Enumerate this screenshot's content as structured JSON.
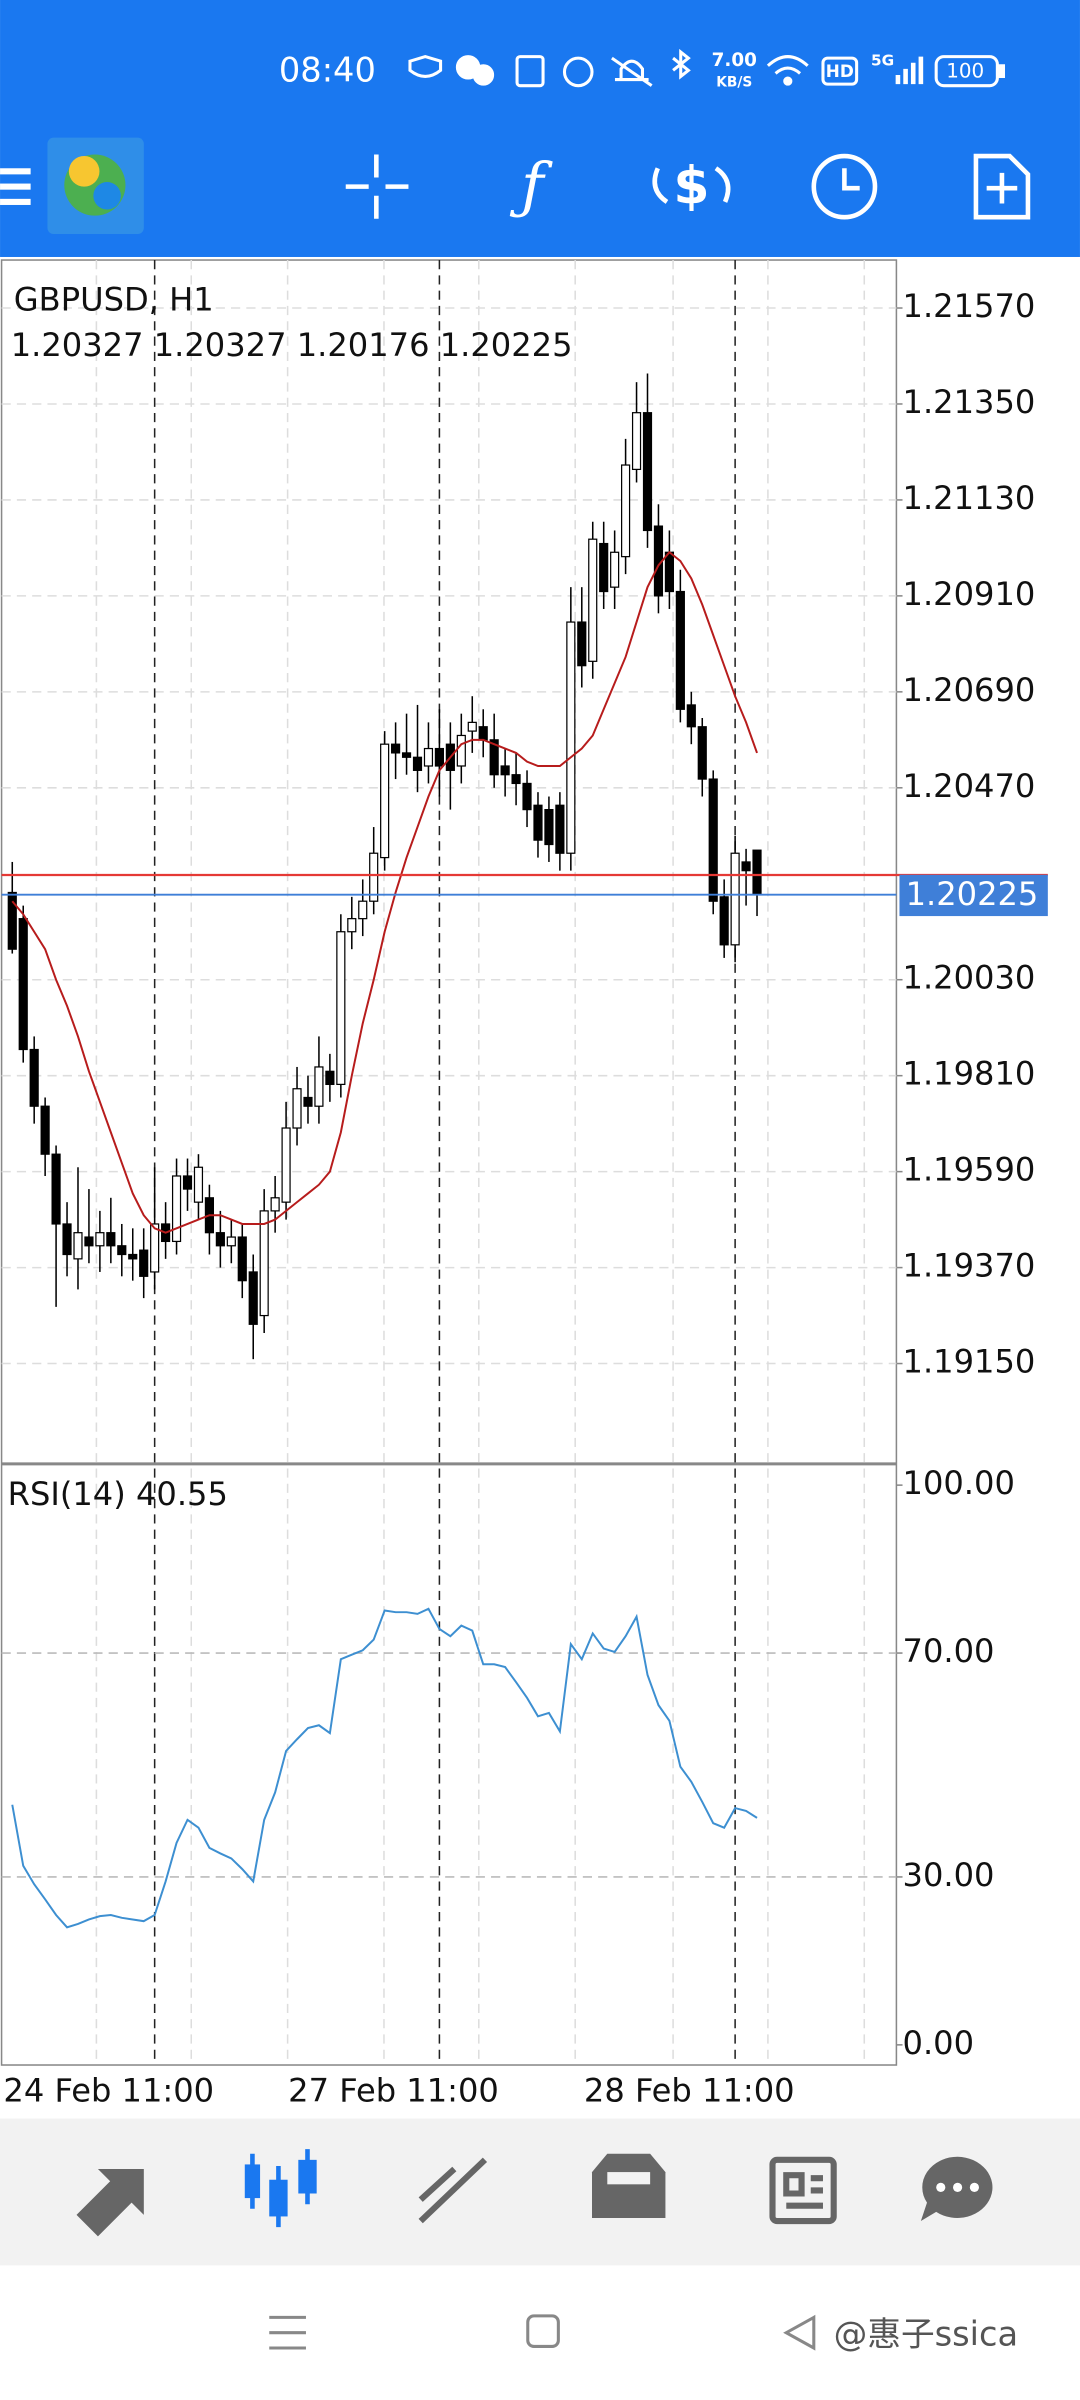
{
  "status_bar": {
    "time": "08:40",
    "net_speed": "7.00",
    "net_unit": "KB/S",
    "hd": "HD",
    "network": "5G",
    "battery": "100"
  },
  "chart_data": [
    {
      "type": "candlestick",
      "title": "GBPUSD, H1",
      "categories": [
        null,
        null,
        null,
        null,
        null,
        null,
        null,
        null,
        null,
        null,
        null,
        null,
        null,
        "24 Feb 11:00",
        null,
        null,
        null,
        null,
        null,
        null,
        null,
        null,
        null,
        null,
        null,
        null,
        null,
        null,
        null,
        null,
        null,
        null,
        null,
        null,
        null,
        null,
        null,
        null,
        null,
        "27 Feb 11:00",
        null,
        null,
        null,
        null,
        null,
        null,
        null,
        null,
        null,
        null,
        null,
        null,
        null,
        null,
        null,
        null,
        null,
        null,
        null,
        null,
        null,
        null,
        null,
        null,
        null,
        null,
        "28 Feb 11:00",
        null,
        null
      ],
      "open": [
        1.2023,
        1.2017,
        1.1987,
        1.1974,
        1.1963,
        1.1947,
        1.1939,
        1.1944,
        1.1942,
        1.1945,
        1.1942,
        1.194,
        1.1941,
        1.1936,
        1.1947,
        1.1943,
        1.1958,
        1.1952,
        1.1953,
        1.1945,
        1.1942,
        1.1944,
        1.1936,
        1.1926,
        1.195,
        1.1952,
        1.1969,
        1.1976,
        1.1974,
        1.1982,
        1.1979,
        1.2014,
        1.2017,
        1.2021,
        1.2031,
        1.2057,
        1.2055,
        1.2054,
        1.2052,
        1.2056,
        1.2057,
        1.2052,
        1.206,
        1.2061,
        1.2058,
        1.2052,
        1.205,
        1.2048,
        1.2043,
        1.2042,
        1.2043,
        1.2032,
        1.2085,
        1.2076,
        1.2103,
        1.2093,
        1.21,
        1.212,
        1.2133,
        1.2107,
        1.2101,
        1.2092,
        1.2066,
        1.2061,
        1.2049,
        1.2022,
        1.2011,
        1.203,
        1.20327
      ],
      "high": [
        1.203,
        1.202,
        1.199,
        1.1976,
        1.1965,
        1.1952,
        1.196,
        1.1955,
        1.195,
        1.1953,
        1.1947,
        1.1946,
        1.1946,
        1.196,
        1.1952,
        1.1962,
        1.1962,
        1.1963,
        1.1956,
        1.195,
        1.1948,
        1.1947,
        1.194,
        1.1955,
        1.1958,
        1.1975,
        1.1983,
        1.1981,
        1.199,
        1.1986,
        1.2018,
        1.2022,
        1.2026,
        1.2038,
        1.206,
        1.2062,
        1.2064,
        1.2066,
        1.2062,
        1.2065,
        1.2062,
        1.2064,
        1.2068,
        1.2065,
        1.2064,
        1.2056,
        1.2055,
        1.2051,
        1.2046,
        1.2045,
        1.2046,
        1.2093,
        1.2093,
        1.2108,
        1.2108,
        1.2106,
        1.2127,
        1.214,
        1.2142,
        1.2112,
        1.2106,
        1.2097,
        1.2069,
        1.2063,
        1.2051,
        1.2026,
        1.2036,
        1.2033,
        1.20327
      ],
      "low": [
        1.2009,
        1.1984,
        1.197,
        1.1958,
        1.1928,
        1.1935,
        1.1932,
        1.1938,
        1.1936,
        1.1938,
        1.1935,
        1.1934,
        1.193,
        1.1932,
        1.1939,
        1.194,
        1.195,
        1.1948,
        1.194,
        1.1937,
        1.1938,
        1.193,
        1.1916,
        1.1922,
        1.1945,
        1.1948,
        1.1965,
        1.197,
        1.197,
        1.1975,
        1.1976,
        1.201,
        1.2013,
        1.2018,
        1.2028,
        1.2049,
        1.205,
        1.2046,
        1.2048,
        1.2045,
        1.2042,
        1.2048,
        1.2055,
        1.2054,
        1.2047,
        1.2045,
        1.2043,
        1.2038,
        1.2031,
        1.203,
        1.2028,
        1.2028,
        1.207,
        1.2072,
        1.2088,
        1.2088,
        1.2096,
        1.2117,
        1.2102,
        1.2087,
        1.2088,
        1.2062,
        1.2057,
        1.2045,
        1.2018,
        1.2008,
        1.2007,
        1.202,
        1.20176
      ],
      "close": [
        1.201,
        1.1987,
        1.1974,
        1.1963,
        1.1947,
        1.194,
        1.1945,
        1.1942,
        1.1945,
        1.1942,
        1.194,
        1.1939,
        1.1935,
        1.1947,
        1.1943,
        1.1958,
        1.1955,
        1.196,
        1.1945,
        1.1942,
        1.1944,
        1.1934,
        1.1924,
        1.195,
        1.1953,
        1.1969,
        1.1978,
        1.1974,
        1.1983,
        1.1979,
        1.2014,
        1.2017,
        1.2021,
        1.2032,
        1.2057,
        1.2055,
        1.2054,
        1.2051,
        1.2056,
        1.2052,
        1.2051,
        1.2059,
        1.2062,
        1.2058,
        1.205,
        1.205,
        1.2048,
        1.2042,
        1.2035,
        1.2034,
        1.2032,
        1.2085,
        1.2075,
        1.2104,
        1.2092,
        1.2101,
        1.2121,
        1.2133,
        1.2106,
        1.2091,
        1.2092,
        1.2065,
        1.2061,
        1.2049,
        1.2021,
        1.2011,
        1.2032,
        1.2028,
        1.20225
      ],
      "moving_average": {
        "color": "#b71c1c",
        "values": [
          1.2021,
          1.2018,
          1.2014,
          1.201,
          1.2003,
          1.1997,
          1.199,
          1.1982,
          1.1975,
          1.1968,
          1.1961,
          1.1954,
          1.1949,
          1.1946,
          1.1945,
          1.1946,
          1.1947,
          1.1948,
          1.1949,
          1.1949,
          1.1948,
          1.1947,
          1.1947,
          1.1947,
          1.1948,
          1.195,
          1.1952,
          1.1954,
          1.1956,
          1.1959,
          1.1968,
          1.1981,
          1.1993,
          1.2003,
          1.2014,
          1.2023,
          1.2031,
          1.2038,
          1.2045,
          1.2051,
          1.2054,
          1.2057,
          1.2058,
          1.2058,
          1.2057,
          1.2056,
          1.2055,
          1.2053,
          1.2052,
          1.2052,
          1.2052,
          1.2054,
          1.2056,
          1.2059,
          1.2065,
          1.2071,
          1.2077,
          1.2085,
          1.2093,
          1.2098,
          1.2101,
          1.2099,
          1.2095,
          1.2089,
          1.2082,
          1.2075,
          1.2068,
          1.2062,
          1.2055
        ]
      },
      "up_color": "#ffffff",
      "down_color": "#000000",
      "bid_color": "#3f7fd8",
      "ask": 1.2027,
      "ask_color": "#e53935",
      "ylim": [
        1.1892,
        1.2168
      ],
      "yticks": [
        {
          "value": 1.2157,
          "label": "1.21570"
        },
        {
          "value": 1.2135,
          "label": "1.21350"
        },
        {
          "value": 1.2113,
          "label": "1.21130"
        },
        {
          "value": 1.2091,
          "label": "1.20910"
        },
        {
          "value": 1.2069,
          "label": "1.20690"
        },
        {
          "value": 1.2047,
          "label": "1.20470"
        },
        {
          "value": 1.2003,
          "label": "1.20030"
        },
        {
          "value": 1.1981,
          "label": "1.19810"
        },
        {
          "value": 1.1959,
          "label": "1.19590"
        },
        {
          "value": 1.1937,
          "label": "1.19370"
        },
        {
          "value": 1.1915,
          "label": "1.19150"
        }
      ],
      "grid": true
    },
    {
      "type": "line",
      "title": "RSI(14)",
      "series": [
        {
          "color": "#3d8fd1",
          "values": [
            42.9,
            32.0,
            28.7,
            26.0,
            23.2,
            21.0,
            21.6,
            22.4,
            23.0,
            23.2,
            22.7,
            22.4,
            22.1,
            23.2,
            29.2,
            36.1,
            40.2,
            38.8,
            35.2,
            34.2,
            33.3,
            31.4,
            29.2,
            40.2,
            45.1,
            52.5,
            54.6,
            56.6,
            57.1,
            55.7,
            68.9,
            69.7,
            70.5,
            72.4,
            77.6,
            77.3,
            77.3,
            77.0,
            77.9,
            74.3,
            73.0,
            74.9,
            74.0,
            68.0,
            68.0,
            67.5,
            64.8,
            62.0,
            58.7,
            59.3,
            56.0,
            71.6,
            68.9,
            73.5,
            70.8,
            70.2,
            73.0,
            76.5,
            66.1,
            60.7,
            57.9,
            49.7,
            47.0,
            43.4,
            39.6,
            38.8,
            42.3,
            41.8,
            40.55
          ]
        }
      ],
      "ylim": [
        -3.6,
        103.8
      ],
      "yticks": [
        {
          "value": 100,
          "label": "100.00"
        },
        {
          "value": 70,
          "label": "70.00"
        },
        {
          "value": 30,
          "label": "30.00"
        },
        {
          "value": 0,
          "label": "0.00"
        }
      ],
      "grid": true
    }
  ],
  "watermark": "@惠子ssica"
}
